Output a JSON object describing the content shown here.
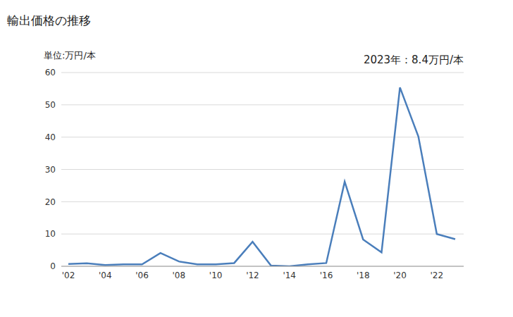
{
  "chart_data": {
    "type": "line",
    "title": "輸出価格の推移",
    "y_label": "単位:万円/本",
    "annotation": "2023年：8.4万円/本",
    "categories": [
      "'02",
      null,
      "'04",
      null,
      "'06",
      null,
      "'08",
      null,
      "'10",
      null,
      "'12",
      null,
      "'14",
      null,
      "'16",
      null,
      "'18",
      null,
      "'20",
      null,
      "'22",
      null
    ],
    "values": [
      0.7,
      0.9,
      0.4,
      0.6,
      0.6,
      4.1,
      1.5,
      0.6,
      0.6,
      1.0,
      7.6,
      0.2,
      0.0,
      0.6,
      1.0,
      26.2,
      8.3,
      4.3,
      55.4,
      40.2,
      10.0,
      8.4
    ],
    "color": "#4a7ebb",
    "ylim": [
      0,
      60
    ],
    "yticks": [
      0,
      10,
      20,
      30,
      40,
      50,
      60
    ],
    "grid": true
  }
}
